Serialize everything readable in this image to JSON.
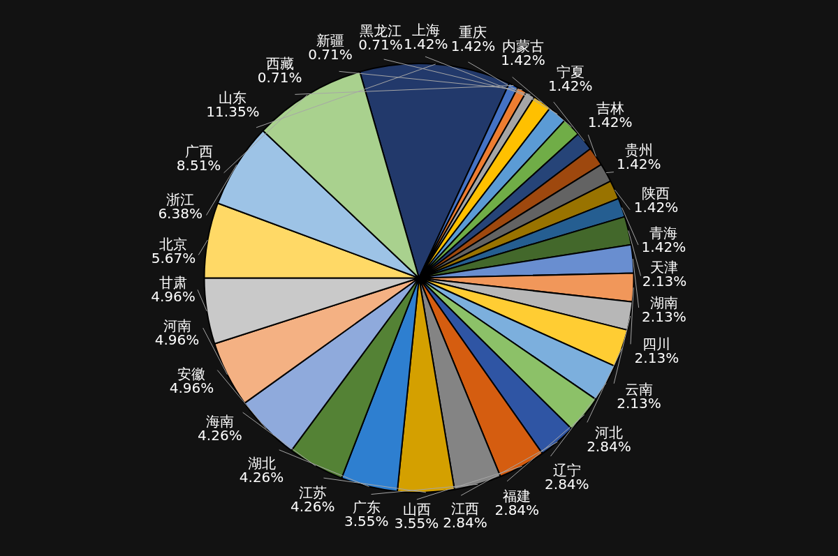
{
  "chart_data": {
    "type": "pie",
    "categories": [
      "山东",
      "西藏",
      "新疆",
      "黑龙江",
      "上海",
      "重庆",
      "内蒙古",
      "宁夏",
      "吉林",
      "贵州",
      "陕西",
      "青海",
      "天津",
      "湖南",
      "四川",
      "云南",
      "河北",
      "辽宁",
      "福建",
      "江西",
      "山西",
      "广东",
      "江苏",
      "湖北",
      "海南",
      "安徽",
      "河南",
      "甘肃",
      "北京",
      "浙江",
      "广西"
    ],
    "values": [
      11.35,
      0.71,
      0.71,
      0.71,
      1.42,
      1.42,
      1.42,
      1.42,
      1.42,
      1.42,
      1.42,
      1.42,
      2.13,
      2.13,
      2.13,
      2.13,
      2.84,
      2.84,
      2.84,
      2.84,
      3.55,
      3.55,
      4.26,
      4.26,
      4.26,
      4.96,
      4.96,
      4.96,
      5.67,
      6.38,
      8.51
    ],
    "colors": [
      "#22396b",
      "#4472c4",
      "#ed7d31",
      "#a5a5a5",
      "#ffc000",
      "#5b9bd5",
      "#70ad47",
      "#264478",
      "#9e480e",
      "#636363",
      "#997300",
      "#255e91",
      "#43682b",
      "#698ed0",
      "#f1975a",
      "#b7b7b7",
      "#ffcd33",
      "#7cafdd",
      "#8cc168",
      "#2f55a4",
      "#d55d10",
      "#848484",
      "#d4a000",
      "#2e7fd0",
      "#548235",
      "#8faadc",
      "#f4b183",
      "#c9c9c9",
      "#ffd966",
      "#9dc3e6",
      "#a9d18e"
    ],
    "value_labels": [
      "11.35%",
      "0.71%",
      "0.71%",
      "0.71%",
      "1.42%",
      "1.42%",
      "1.42%",
      "1.42%",
      "1.42%",
      "1.42%",
      "1.42%",
      "1.42%",
      "2.13%",
      "2.13%",
      "2.13%",
      "2.13%",
      "2.84%",
      "2.84%",
      "2.84%",
      "2.84%",
      "3.55%",
      "3.55%",
      "4.26%",
      "4.26%",
      "4.26%",
      "4.96%",
      "4.96%",
      "4.96%",
      "5.67%",
      "6.38%",
      "8.51%"
    ],
    "legend": false
  }
}
